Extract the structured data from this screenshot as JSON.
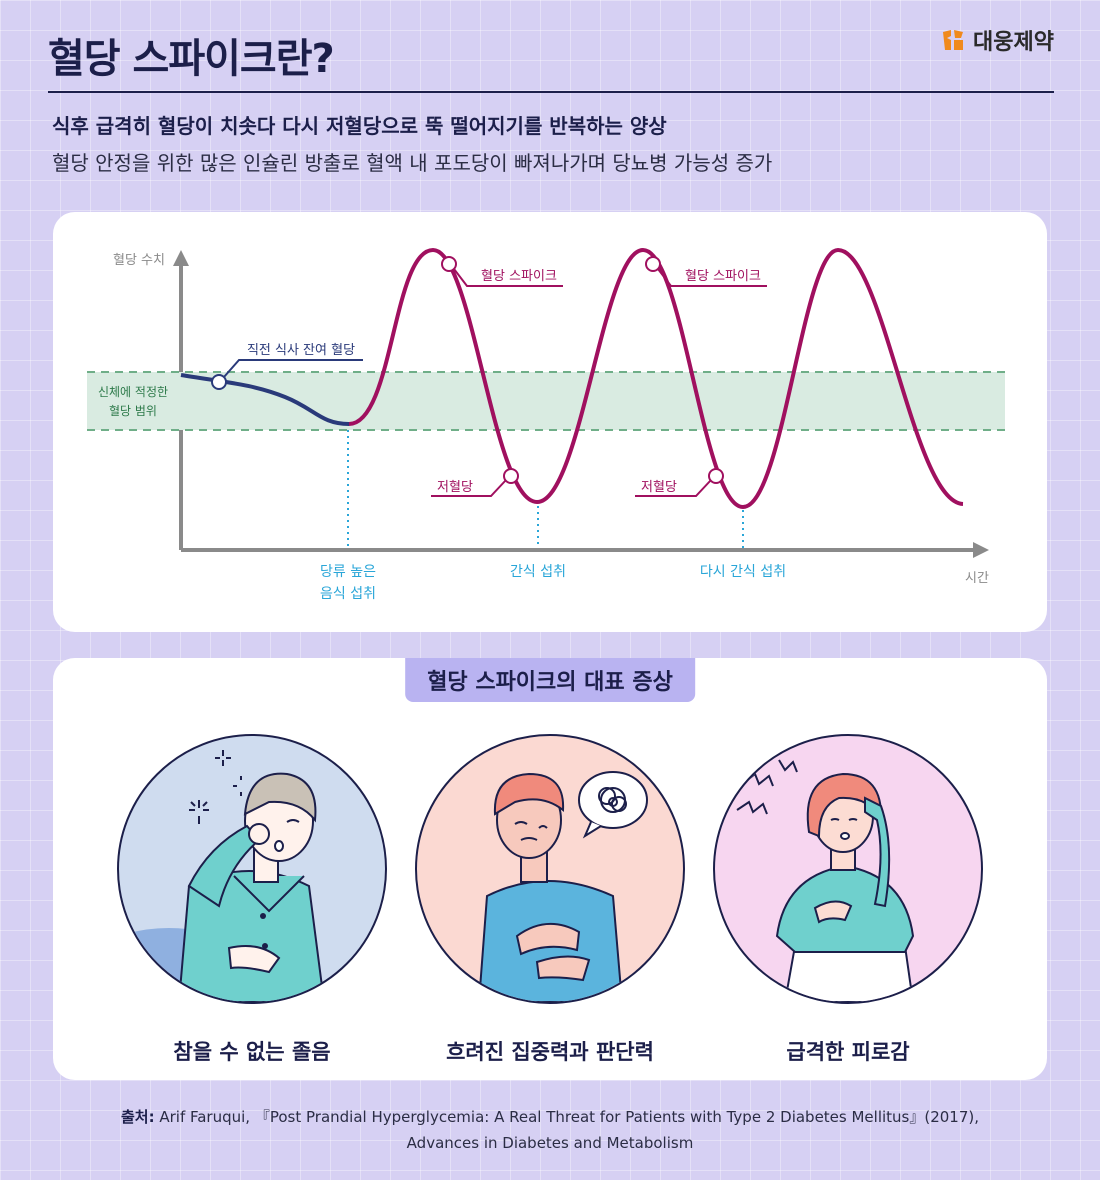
{
  "header": {
    "title": "혈당 스파이크란?",
    "brand": "대웅제약",
    "subtitle_bold": "식후 급격히 혈당이 치솟다 다시 저혈당으로 뚝 떨어지기를 반복하는 양상",
    "subtitle": "혈당 안정을 위한 많은 인슐린 방출로 혈액 내 포도당이 빠져나가며 당뇨병 가능성 증가"
  },
  "chart": {
    "y_axis_label": "혈당 수치",
    "x_axis_label": "시간",
    "band_label_line1": "신체에 적정한",
    "band_label_line2": "혈당 범위",
    "annot_residual": "직전 식사 잔여 혈당",
    "annot_spike1": "혈당 스파이크",
    "annot_spike2": "혈당 스파이크",
    "annot_hypo1": "저혈당",
    "annot_hypo2": "저혈당",
    "event1_line1": "당류 높은",
    "event1_line2": "음식 섭취",
    "event2": "간식 섭취",
    "event3": "다시 간식 섭취",
    "colors": {
      "stable": "#2a3a7a",
      "spike": "#a0105f",
      "band": "#d9ebe1",
      "band_border": "#6fae88",
      "event": "#2aa6d8"
    }
  },
  "symptoms": {
    "title": "혈당 스파이크의 대표 증상",
    "items": [
      {
        "label": "참을 수 없는 졸음",
        "bg": "#cfdcef"
      },
      {
        "label": "흐려진 집중력과 판단력",
        "bg": "#fbd9d2"
      },
      {
        "label": "급격한 피로감",
        "bg": "#f7d6f0"
      }
    ]
  },
  "source": {
    "prefix": "출처:",
    "line1": " Arif Faruqui, 『Post Prandial Hyperglycemia: A Real Threat for Patients with Type 2 Diabetes Mellitus』(2017),",
    "line2": "Advances in Diabetes and Metabolism"
  }
}
